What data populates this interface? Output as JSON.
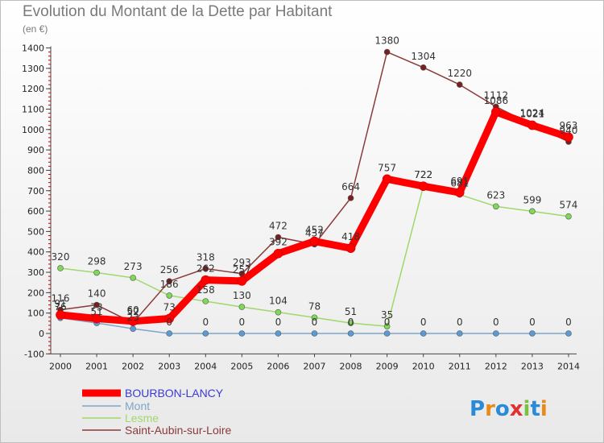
{
  "chart_data": {
    "type": "line",
    "title": "Evolution du Montant de la Dette par Habitant",
    "subtitle": "(en €)",
    "xlabel": "",
    "ylabel": "",
    "categories": [
      "2000",
      "2001",
      "2002",
      "2003",
      "2004",
      "2005",
      "2006",
      "2007",
      "2008",
      "2009",
      "2010",
      "2011",
      "2012",
      "2013",
      "2014"
    ],
    "y_ticks": [
      -100,
      0,
      100,
      200,
      300,
      400,
      500,
      600,
      700,
      800,
      900,
      1000,
      1100,
      1200,
      1300,
      1400
    ],
    "ylim": [
      -100,
      1400
    ],
    "grid": false,
    "legend_position": "bottom-left",
    "series": [
      {
        "name": "BOURBON-LANCY",
        "color": "#ff0000",
        "line_color": "#ff0000",
        "values": [
          91,
          73,
          60,
          73,
          262,
          257,
          392,
          452,
          418,
          757,
          722,
          691,
          1086,
          1021,
          963
        ]
      },
      {
        "name": "Mont",
        "color": "#5b9bd5",
        "line_color": "#7fa6c9",
        "values": [
          76,
          51,
          23,
          0,
          0,
          0,
          0,
          0,
          0,
          0,
          0,
          0,
          0,
          0,
          0
        ]
      },
      {
        "name": "Lesme",
        "color": "#7ed957",
        "line_color": "#9fd86b",
        "values": [
          320,
          298,
          273,
          186,
          158,
          130,
          104,
          78,
          51,
          35,
          722,
          681,
          623,
          599,
          574
        ]
      },
      {
        "name": "Saint-Aubin-sur-Loire",
        "color": "#7a1f1f",
        "line_color": "#8b3a3a",
        "values": [
          116,
          140,
          52,
          256,
          318,
          293,
          472,
          437,
          664,
          1380,
          1304,
          1220,
          1112,
          1024,
          940
        ]
      }
    ]
  },
  "logo": {
    "text": "Proxiti"
  }
}
